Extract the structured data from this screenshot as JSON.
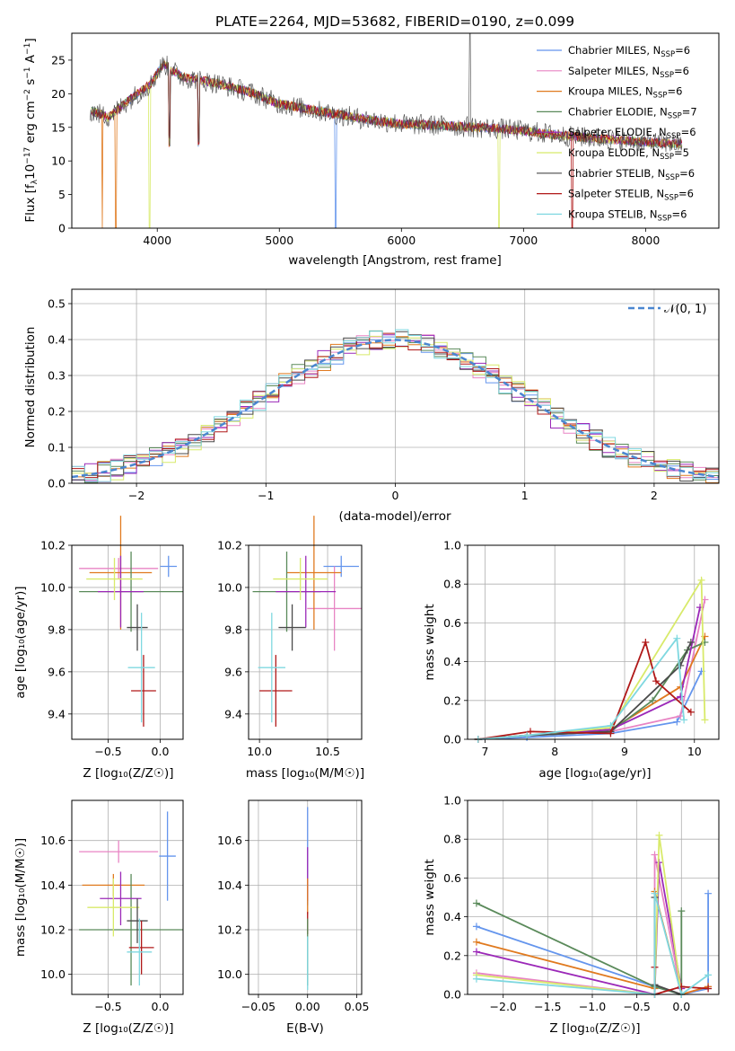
{
  "title": "PLATE=2264, MJD=53682, FIBERID=0190, z=0.099",
  "colors": [
    "#6495ed",
    "#e884c4",
    "#e07a1f",
    "#5a8a5a",
    "#9b28b8",
    "#d8ea6a",
    "#4a4a4a",
    "#b01818",
    "#7fd8e0"
  ],
  "models": [
    {
      "name": "Chabrier MILES",
      "nssp": "6"
    },
    {
      "name": "Salpeter MILES",
      "nssp": "6"
    },
    {
      "name": "Kroupa MILES",
      "nssp": "6"
    },
    {
      "name": "Chabrier ELODIE",
      "nssp": "7"
    },
    {
      "name": "Salpeter ELODIE",
      "nssp": "6"
    },
    {
      "name": "Kroupa ELODIE",
      "nssp": "5"
    },
    {
      "name": "Chabrier STELIB",
      "nssp": "6"
    },
    {
      "name": "Salpeter STELIB",
      "nssp": "6"
    },
    {
      "name": "Kroupa STELIB",
      "nssp": "6"
    }
  ],
  "legend_suffix": "N",
  "legend_sub": "SSP",
  "legend_eq": "=",
  "spectrum": {
    "xlabel": "wavelength [Angstrom, rest frame]",
    "ylabel_parts": {
      "a": "Flux [f",
      "b": "λ",
      "c": "10",
      "d": "−17",
      "e": " erg cm",
      "f": "−2",
      "g": " s",
      "h": "−1",
      "i": " A",
      "j": "−1",
      "k": "]"
    },
    "xticks": [
      "4000",
      "5000",
      "6000",
      "7000",
      "8000"
    ],
    "yticks": [
      "0",
      "5",
      "10",
      "15",
      "20",
      "25"
    ]
  },
  "hist": {
    "xlabel": "(data-model)/error",
    "ylabel": "Normed distribution",
    "xticks": [
      "−2",
      "−1",
      "0",
      "1",
      "2"
    ],
    "yticks": [
      "0.0",
      "0.1",
      "0.2",
      "0.3",
      "0.4",
      "0.5"
    ],
    "legend_label": "𝒩(0, 1)"
  },
  "panels": {
    "age_vs_Z": {
      "xlabel": "Z [log₁₀(Z/Z☉)]",
      "ylabel": "age  [log₁₀(age/yr)]",
      "xticks": [
        "−0.5",
        "0.0"
      ],
      "yticks": [
        "9.4",
        "9.6",
        "9.8",
        "10.0",
        "10.2"
      ]
    },
    "age_vs_mass": {
      "xlabel": "mass [log₁₀(M/M☉)]",
      "xticks": [
        "10.0",
        "10.5"
      ],
      "yticks": [
        "9.4",
        "9.6",
        "9.8",
        "10.0",
        "10.2"
      ]
    },
    "weight_vs_age": {
      "xlabel": "age  [log₁₀(age/yr)]",
      "ylabel": "mass weight",
      "xticks": [
        "7",
        "8",
        "9",
        "10"
      ],
      "yticks": [
        "0.0",
        "0.2",
        "0.4",
        "0.6",
        "0.8",
        "1.0"
      ]
    },
    "mass_vs_Z": {
      "xlabel": "Z [log₁₀(Z/Z☉)]",
      "ylabel": "mass [log₁₀(M/M☉)]",
      "xticks": [
        "−0.5",
        "0.0"
      ],
      "yticks": [
        "10.0",
        "10.2",
        "10.4",
        "10.6"
      ]
    },
    "mass_vs_ebv": {
      "xlabel": "E(B-V)",
      "xticks": [
        "−0.05",
        "0.00",
        "0.05"
      ],
      "yticks": [
        "10.0",
        "10.2",
        "10.4",
        "10.6"
      ]
    },
    "weight_vs_Z": {
      "xlabel": "Z [log₁₀(Z/Z☉)]",
      "ylabel": "mass weight",
      "xticks": [
        "−2.0",
        "−1.5",
        "−1.0",
        "−0.5",
        "0.0"
      ],
      "yticks": [
        "0.0",
        "0.2",
        "0.4",
        "0.6",
        "0.8",
        "1.0"
      ]
    }
  },
  "chart_data": [
    {
      "type": "line",
      "title": "PLATE=2264, MJD=53682, FIBERID=0190, z=0.099",
      "xlabel": "wavelength [Angstrom, rest frame]",
      "ylabel": "Flux [fλ10^-17 erg cm^-2 s^-1 A^-1]",
      "xlim": [
        3300,
        8600
      ],
      "ylim": [
        0,
        29
      ],
      "continuum": {
        "x": [
          3450,
          3600,
          3800,
          3950,
          4050,
          4200,
          4500,
          4800,
          5000,
          5300,
          5600,
          6000,
          6400,
          6800,
          7000,
          7300,
          7700,
          8000,
          8300
        ],
        "y": [
          17.5,
          16.5,
          19.5,
          21.5,
          24.5,
          22.5,
          21.5,
          20.0,
          18.5,
          17.5,
          16.5,
          15.5,
          15.2,
          14.8,
          14.5,
          13.8,
          13.2,
          12.8,
          12.5
        ]
      },
      "absorption_lines": [
        {
          "x": 3550,
          "to": 0,
          "series": 2
        },
        {
          "x": 3660,
          "to": 0,
          "series": 2
        },
        {
          "x": 3935,
          "to": 0,
          "series": 5
        },
        {
          "x": 4101,
          "to": 12
        },
        {
          "x": 4340,
          "to": 12
        },
        {
          "x": 5460,
          "to": 0,
          "series": 0
        },
        {
          "x": 6800,
          "to": 0,
          "series": 5
        },
        {
          "x": 7400,
          "to": 0,
          "series": 7
        }
      ],
      "emission_lines": [
        {
          "x": 6563,
          "to": 29
        }
      ]
    },
    {
      "type": "bar",
      "title": "",
      "xlabel": "(data-model)/error",
      "ylabel": "Normed distribution",
      "xlim": [
        -2.5,
        2.5
      ],
      "ylim": [
        0,
        0.54
      ],
      "bin_width": 0.1,
      "normal_pdf": {
        "name": "𝒩(0, 1)",
        "mean": 0,
        "sigma": 1
      }
    },
    {
      "type": "scatter",
      "title": "",
      "xlabel": "Z [log10(Z/Z_sun)]",
      "ylabel": "age [log10(age/yr)]",
      "xlim": [
        -0.85,
        0.22
      ],
      "ylim": [
        9.28,
        10.2
      ],
      "points": [
        {
          "series": 0,
          "x": 0.08,
          "xerr": 0.08,
          "y": 10.1,
          "yerr": 0.05
        },
        {
          "series": 1,
          "x": -0.4,
          "xerr": 0.38,
          "y": 10.09,
          "yerr": 0.05
        },
        {
          "series": 2,
          "x": -0.38,
          "xerr": 0.3,
          "y": 10.07,
          "yerr": 0.27
        },
        {
          "series": 3,
          "x": -0.28,
          "xerr": 0.5,
          "y": 9.98,
          "yerr": 0.19
        },
        {
          "series": 4,
          "x": -0.38,
          "xerr": 0.22,
          "y": 9.98,
          "yerr": 0.17
        },
        {
          "series": 5,
          "x": -0.44,
          "xerr": 0.27,
          "y": 10.04,
          "yerr": 0.1
        },
        {
          "series": 6,
          "x": -0.22,
          "xerr": 0.1,
          "y": 9.81,
          "yerr": 0.11
        },
        {
          "series": 7,
          "x": -0.16,
          "xerr": 0.12,
          "y": 9.51,
          "yerr": 0.17
        },
        {
          "series": 8,
          "x": -0.18,
          "xerr": 0.13,
          "y": 9.62,
          "yerr": 0.26
        }
      ]
    },
    {
      "type": "scatter",
      "title": "",
      "xlabel": "mass [log10(M/M_sun)]",
      "ylabel": "",
      "xlim": [
        9.92,
        10.75
      ],
      "ylim": [
        9.28,
        10.2
      ],
      "points": [
        {
          "series": 0,
          "x": 10.6,
          "xerr": 0.13,
          "y": 10.1,
          "yerr": 0.05
        },
        {
          "series": 1,
          "x": 10.55,
          "xerr": 0.2,
          "y": 9.9,
          "yerr": 0.2
        },
        {
          "series": 2,
          "x": 10.4,
          "xerr": 0.2,
          "y": 10.07,
          "yerr": 0.27
        },
        {
          "series": 3,
          "x": 10.2,
          "xerr": 0.25,
          "y": 9.98,
          "yerr": 0.19
        },
        {
          "series": 4,
          "x": 10.34,
          "xerr": 0.22,
          "y": 9.98,
          "yerr": 0.17
        },
        {
          "series": 5,
          "x": 10.3,
          "xerr": 0.2,
          "y": 10.04,
          "yerr": 0.1
        },
        {
          "series": 6,
          "x": 10.24,
          "xerr": 0.1,
          "y": 9.81,
          "yerr": 0.11
        },
        {
          "series": 7,
          "x": 10.12,
          "xerr": 0.12,
          "y": 9.51,
          "yerr": 0.17
        },
        {
          "series": 8,
          "x": 10.09,
          "xerr": 0.1,
          "y": 9.62,
          "yerr": 0.26
        }
      ]
    },
    {
      "type": "line",
      "title": "",
      "xlabel": "age [log10(age/yr)]",
      "ylabel": "mass weight",
      "xlim": [
        6.75,
        10.35
      ],
      "ylim": [
        0,
        1
      ],
      "series": [
        {
          "color_index": 0,
          "x": [
            6.9,
            7.6,
            8.8,
            9.75,
            10.1
          ],
          "y": [
            0.0,
            0.01,
            0.03,
            0.09,
            0.35
          ]
        },
        {
          "color_index": 1,
          "x": [
            6.9,
            7.6,
            8.8,
            9.8,
            10.15
          ],
          "y": [
            0.0,
            0.02,
            0.04,
            0.12,
            0.72
          ]
        },
        {
          "color_index": 2,
          "x": [
            6.9,
            7.6,
            8.8,
            9.8,
            10.15
          ],
          "y": [
            0.0,
            0.02,
            0.05,
            0.27,
            0.53
          ]
        },
        {
          "color_index": 3,
          "x": [
            6.9,
            7.6,
            8.8,
            9.4,
            9.9,
            10.15
          ],
          "y": [
            0.0,
            0.02,
            0.04,
            0.2,
            0.46,
            0.5
          ]
        },
        {
          "color_index": 4,
          "x": [
            6.9,
            7.6,
            8.8,
            9.8,
            10.08
          ],
          "y": [
            0.0,
            0.02,
            0.05,
            0.22,
            0.68
          ]
        },
        {
          "color_index": 5,
          "x": [
            6.9,
            7.6,
            8.8,
            10.1,
            10.15
          ],
          "y": [
            0.0,
            0.02,
            0.06,
            0.82,
            0.1
          ]
        },
        {
          "color_index": 6,
          "x": [
            6.9,
            7.6,
            8.8,
            9.8,
            9.95
          ],
          "y": [
            0.0,
            0.02,
            0.04,
            0.38,
            0.5
          ]
        },
        {
          "color_index": 7,
          "x": [
            6.9,
            7.65,
            8.8,
            9.3,
            9.45,
            9.95
          ],
          "y": [
            0.0,
            0.04,
            0.03,
            0.5,
            0.3,
            0.14
          ]
        },
        {
          "color_index": 8,
          "x": [
            6.9,
            7.6,
            8.8,
            9.75,
            9.85
          ],
          "y": [
            0.0,
            0.02,
            0.07,
            0.52,
            0.1
          ]
        }
      ]
    },
    {
      "type": "scatter",
      "title": "",
      "xlabel": "Z [log10(Z/Z_sun)]",
      "ylabel": "mass [log10(M/M_sun)]",
      "xlim": [
        -0.85,
        0.22
      ],
      "ylim": [
        9.91,
        10.78
      ],
      "points": [
        {
          "series": 0,
          "x": 0.07,
          "xerr": 0.08,
          "y": 10.53,
          "yerr": 0.2
        },
        {
          "series": 1,
          "x": -0.4,
          "xerr": 0.38,
          "y": 10.55,
          "yerr": 0.05
        },
        {
          "series": 2,
          "x": -0.45,
          "xerr": 0.3,
          "y": 10.4,
          "yerr": 0.05
        },
        {
          "series": 3,
          "x": -0.28,
          "xerr": 0.5,
          "y": 10.2,
          "yerr": 0.25
        },
        {
          "series": 4,
          "x": -0.38,
          "xerr": 0.2,
          "y": 10.34,
          "yerr": 0.12
        },
        {
          "series": 5,
          "x": -0.45,
          "xerr": 0.25,
          "y": 10.3,
          "yerr": 0.13
        },
        {
          "series": 6,
          "x": -0.22,
          "xerr": 0.1,
          "y": 10.24,
          "yerr": 0.1
        },
        {
          "series": 7,
          "x": -0.18,
          "xerr": 0.12,
          "y": 10.12,
          "yerr": 0.12
        },
        {
          "series": 8,
          "x": -0.2,
          "xerr": 0.12,
          "y": 10.1,
          "yerr": 0.15
        }
      ]
    },
    {
      "type": "scatter",
      "title": "",
      "xlabel": "E(B-V)",
      "ylabel": "",
      "xlim": [
        -0.06,
        0.055
      ],
      "ylim": [
        9.91,
        10.78
      ],
      "points": [
        {
          "series": 0,
          "x": 0.0,
          "y": 10.53,
          "yerr": 0.22
        },
        {
          "series": 4,
          "x": 0.0,
          "y": 10.45,
          "yerr": 0.12
        },
        {
          "series": 2,
          "x": 0.0,
          "y": 10.35,
          "yerr": 0.08
        },
        {
          "series": 7,
          "x": 0.0,
          "y": 10.23,
          "yerr": 0.05
        },
        {
          "series": 3,
          "x": 0.0,
          "y": 10.1,
          "yerr": 0.15
        },
        {
          "series": 8,
          "x": 0.0,
          "y": 10.05,
          "yerr": 0.12
        }
      ]
    },
    {
      "type": "line",
      "title": "",
      "xlabel": "Z [log10(Z/Z_sun)]",
      "ylabel": "mass weight",
      "xlim": [
        -2.4,
        0.42
      ],
      "ylim": [
        0,
        1
      ],
      "series": [
        {
          "color_index": 0,
          "x": [
            -2.3,
            -0.3,
            0.0,
            0.3,
            0.3
          ],
          "y": [
            0.35,
            0.04,
            0.0,
            0.03,
            0.52
          ]
        },
        {
          "color_index": 1,
          "x": [
            -2.3,
            -0.3,
            -0.3,
            0.0,
            0.3
          ],
          "y": [
            0.11,
            0.0,
            0.72,
            0.0,
            0.04
          ]
        },
        {
          "color_index": 2,
          "x": [
            -2.3,
            -0.3,
            -0.3,
            0.0,
            0.3
          ],
          "y": [
            0.27,
            0.03,
            0.53,
            0.0,
            0.04
          ]
        },
        {
          "color_index": 3,
          "x": [
            -2.3,
            -0.3,
            0.0,
            0.0
          ],
          "y": [
            0.47,
            0.04,
            0.0,
            0.43
          ]
        },
        {
          "color_index": 4,
          "x": [
            -2.3,
            -0.3,
            -0.25,
            0.0
          ],
          "y": [
            0.22,
            0.0,
            0.68,
            0.03
          ]
        },
        {
          "color_index": 5,
          "x": [
            -2.3,
            -0.3,
            -0.25,
            0.0
          ],
          "y": [
            0.1,
            0.0,
            0.82,
            0.0
          ]
        },
        {
          "color_index": 6,
          "x": [
            -0.3,
            -0.3,
            0.0
          ],
          "y": [
            0.5,
            0.05,
            0.0
          ]
        },
        {
          "color_index": 7,
          "x": [
            -0.3,
            -0.3,
            0.0,
            0.3
          ],
          "y": [
            0.14,
            0.0,
            0.04,
            0.03
          ]
        },
        {
          "color_index": 8,
          "x": [
            -2.3,
            -0.3,
            -0.3,
            0.0,
            0.3
          ],
          "y": [
            0.08,
            0.0,
            0.52,
            0.0,
            0.1
          ]
        }
      ]
    }
  ]
}
